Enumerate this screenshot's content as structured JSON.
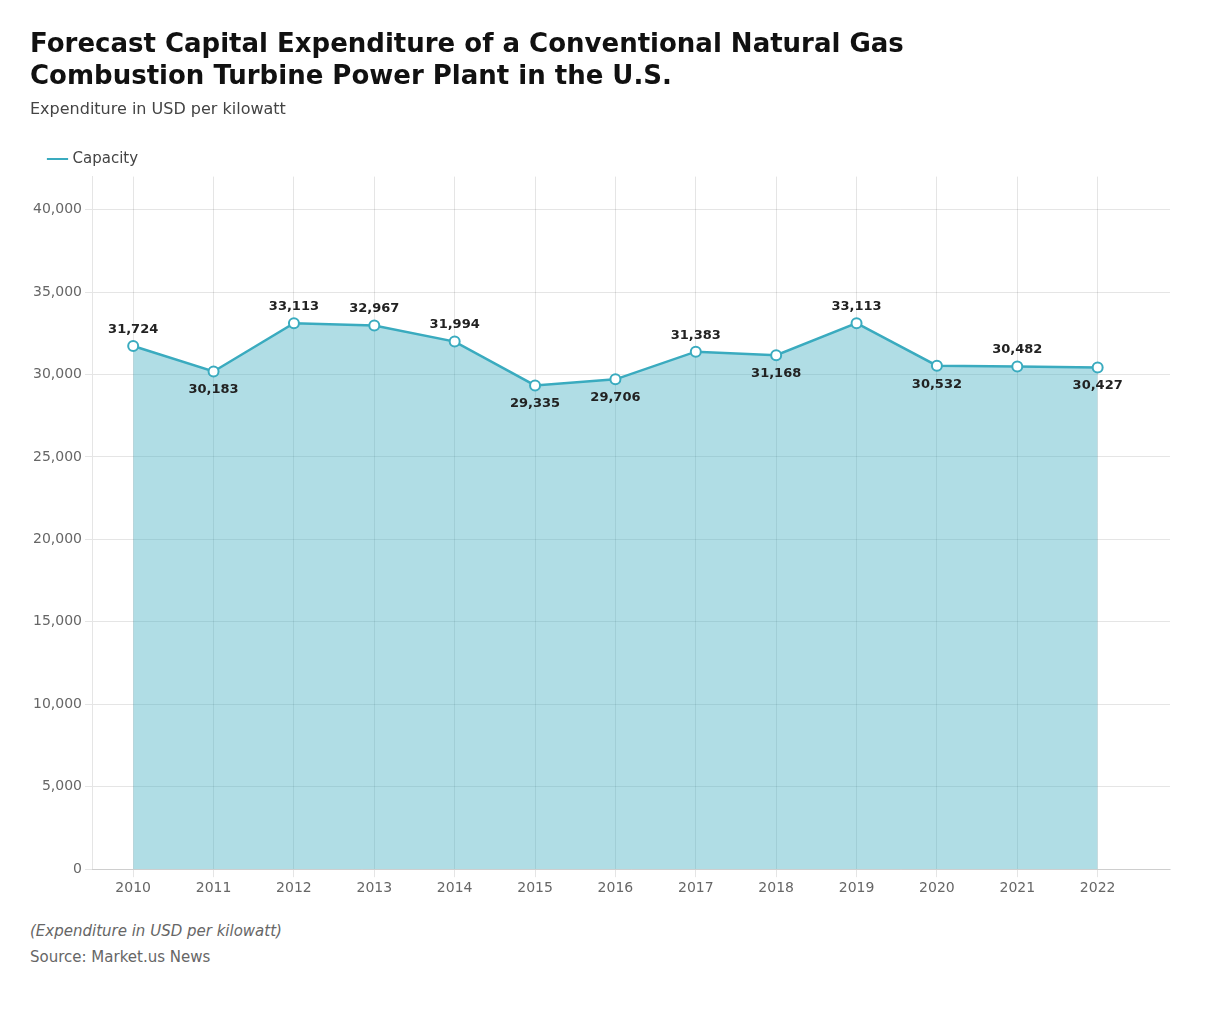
{
  "chart_data": {
    "type": "line",
    "title": [
      "Forecast Capital Expenditure of a Conventional Natural Gas",
      "Combustion Turbine Power Plant in the U.S."
    ],
    "subtitle": "Expenditure in USD per kilowatt",
    "annotations": [
      "(Expenditure in USD per kilowatt)",
      "Source: Market.us News"
    ],
    "x": [
      2010,
      2011,
      2012,
      2013,
      2014,
      2015,
      2016,
      2017,
      2018,
      2019,
      2020,
      2021,
      2022
    ],
    "series": [
      {
        "name": "Capacity",
        "color": "#3aabbf",
        "marker": "circle",
        "values": [
          31724,
          30183,
          33113,
          32967,
          31994,
          29335,
          29706,
          31383,
          31168,
          33113,
          30532,
          30482,
          30427
        ],
        "value_labels": [
          "31,724",
          "30,183",
          "33,113",
          "32,967",
          "31,994",
          "29,335",
          "29,706",
          "31,383",
          "31,168",
          "33,113",
          "30,532",
          "30,482",
          "30,427"
        ]
      }
    ],
    "xlim": [
      2009.5,
      2022.9
    ],
    "xticks": [
      2010,
      2011,
      2012,
      2013,
      2014,
      2015,
      2016,
      2017,
      2018,
      2019,
      2020,
      2021,
      2022
    ],
    "ylim": [
      0,
      42000
    ],
    "yticks": [
      0,
      {
        "value": 5000,
        "label": "5,000"
      },
      {
        "value": 10000,
        "label": "10,000"
      },
      {
        "value": 15000,
        "label": "15,000"
      },
      {
        "value": 20000,
        "label": "20,000"
      },
      {
        "value": 25000,
        "label": "25,000"
      },
      {
        "value": 30000,
        "label": "30,000"
      },
      {
        "value": 35000,
        "label": "35,000"
      },
      {
        "value": 40000,
        "label": "40,000"
      }
    ],
    "grid": true,
    "legend": "top left",
    "data_labels": true
  }
}
